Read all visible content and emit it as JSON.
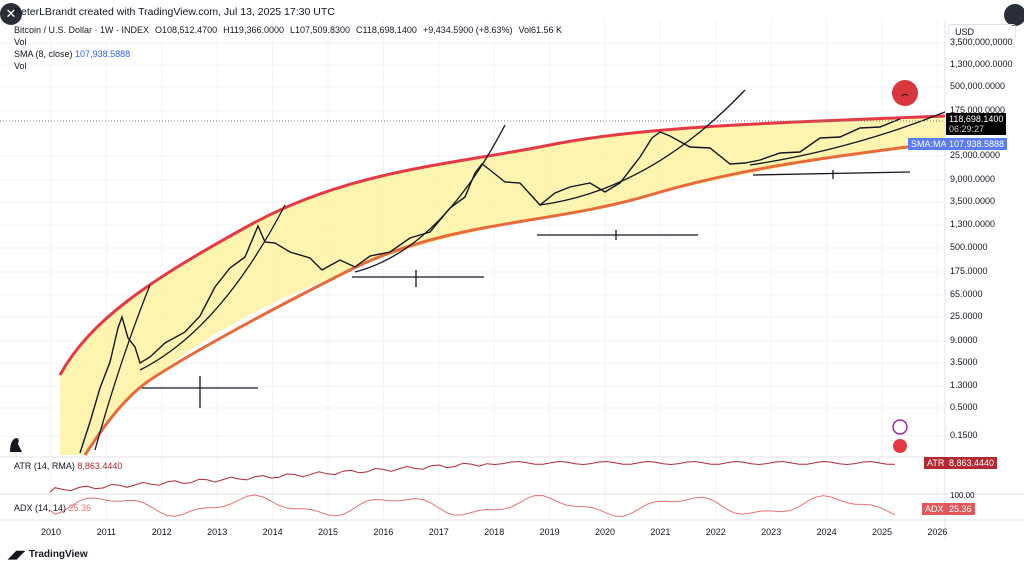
{
  "header": {
    "caption": "PeterLBrandt created with TradingView.com, Jul 13, 2025 17:30 UTC"
  },
  "legend": {
    "symbol": "Bitcoin / U.S. Dollar · 1W · INDEX",
    "open": "O108,512.4700",
    "high": "H119,366.0000",
    "low": "L107,509.8300",
    "close": "C118,698.1400",
    "change": "+9,434.5900 (+8.63%)",
    "vol": "Vol61.56 K",
    "vol_label": "Vol",
    "sma_label": "SMA (8, close)",
    "sma_value": "107,938.5888",
    "vol_label2": "Vol"
  },
  "price_axis": {
    "currency": "USD",
    "ticks": [
      "3,500,000,0000",
      "1,300,000.0000",
      "500,000.0000",
      "175,000.0000",
      "25,000.0000",
      "9,000.0000",
      "3,500.0000",
      "1,300.0000",
      "500.0000",
      "175.0000",
      "65.0000",
      "25.0000",
      "9.0000",
      "3.5000",
      "1.3000",
      "0.5000",
      "0.1500"
    ],
    "last_price": "118,698.1400",
    "countdown": "06:29:27",
    "sma_tag": "SMA:MA",
    "sma_price": "107,938.5888"
  },
  "atr": {
    "label": "ATR (14, RMA)",
    "value": "8,863.4440",
    "tag": "ATR",
    "tag_value": "8,863.4440"
  },
  "adx": {
    "label": "ADX (14, 14)",
    "value": "25.36",
    "tag": "ADX",
    "tag_value": "25.36",
    "axis_tick": "100.00"
  },
  "time_axis": [
    "2010",
    "2011",
    "2012",
    "2013",
    "2014",
    "2015",
    "2016",
    "2017",
    "2018",
    "2019",
    "2020",
    "2021",
    "2022",
    "2023",
    "2024",
    "2025",
    "2026"
  ],
  "footer": {
    "brand": "TradingView"
  },
  "colors": {
    "band": "#fdf3a6",
    "band_edge": "#e53945",
    "candles": "#131722",
    "sma": "#2962ff",
    "atr": "#b22833",
    "adx": "#e57373"
  }
}
